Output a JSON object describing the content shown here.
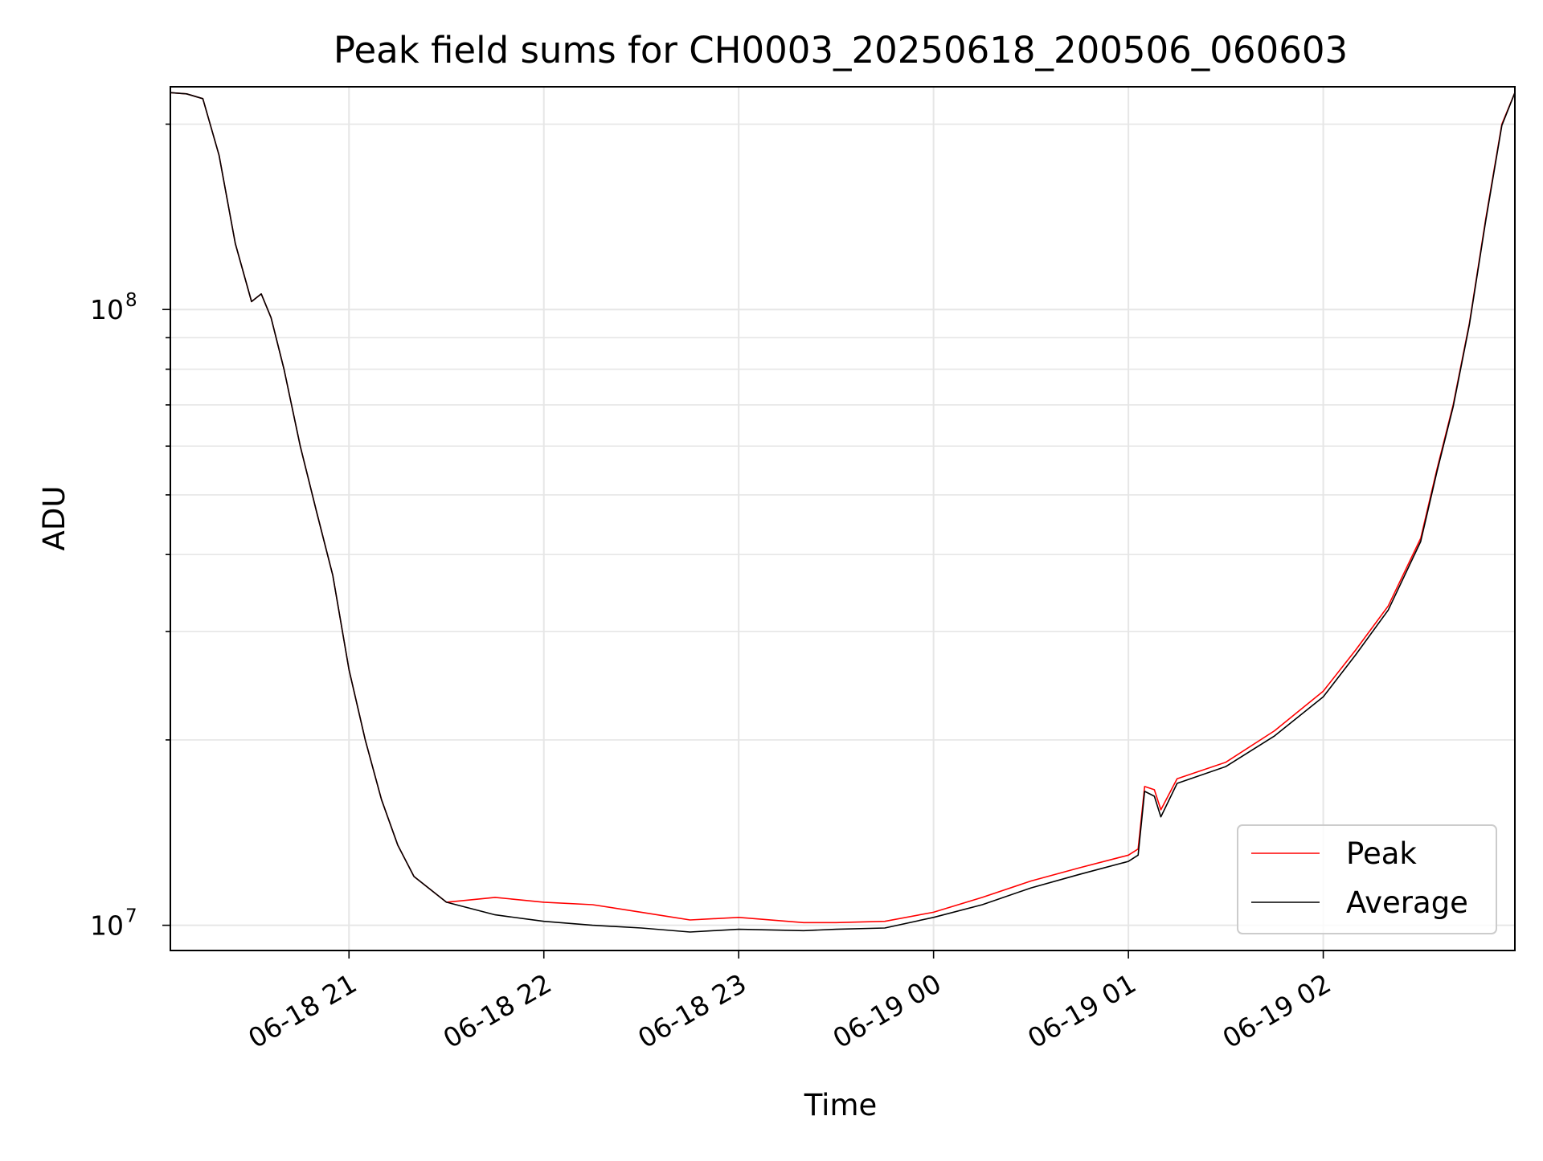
{
  "chart_data": {
    "type": "line",
    "title": "Peak field sums for CH0003_20250618_200506_060603",
    "xlabel": "Time",
    "ylabel": "ADU",
    "yscale": "log",
    "ylim": [
      9100000,
      230000000
    ],
    "xlim": [
      "2025-06-18 20:05",
      "2025-06-19 02:59"
    ],
    "x_ticks": [
      {
        "t": "2025-06-18 21:00",
        "label": "06-18 21"
      },
      {
        "t": "2025-06-18 22:00",
        "label": "06-18 22"
      },
      {
        "t": "2025-06-18 23:00",
        "label": "06-18 23"
      },
      {
        "t": "2025-06-19 00:00",
        "label": "06-19 00"
      },
      {
        "t": "2025-06-19 01:00",
        "label": "06-19 01"
      },
      {
        "t": "2025-06-19 02:00",
        "label": "06-19 02"
      }
    ],
    "y_ticks": [
      {
        "value": 10000000,
        "base": "10",
        "exp": "7"
      },
      {
        "value": 100000000,
        "base": "10",
        "exp": "8"
      }
    ],
    "grid": "on",
    "legend": {
      "position": "lower-right"
    },
    "x": [
      "2025-06-18 20:05",
      "2025-06-18 20:10",
      "2025-06-18 20:15",
      "2025-06-18 20:20",
      "2025-06-18 20:25",
      "2025-06-18 20:30",
      "2025-06-18 20:33",
      "2025-06-18 20:36",
      "2025-06-18 20:40",
      "2025-06-18 20:45",
      "2025-06-18 20:50",
      "2025-06-18 20:55",
      "2025-06-18 21:00",
      "2025-06-18 21:05",
      "2025-06-18 21:10",
      "2025-06-18 21:15",
      "2025-06-18 21:20",
      "2025-06-18 21:30",
      "2025-06-18 21:45",
      "2025-06-18 22:00",
      "2025-06-18 22:15",
      "2025-06-18 22:30",
      "2025-06-18 22:45",
      "2025-06-18 23:00",
      "2025-06-18 23:20",
      "2025-06-18 23:30",
      "2025-06-18 23:45",
      "2025-06-19 00:00",
      "2025-06-19 00:15",
      "2025-06-19 00:30",
      "2025-06-19 00:45",
      "2025-06-19 01:00",
      "2025-06-19 01:03",
      "2025-06-19 01:05",
      "2025-06-19 01:08",
      "2025-06-19 01:10",
      "2025-06-19 01:15",
      "2025-06-19 01:30",
      "2025-06-19 01:45",
      "2025-06-19 02:00",
      "2025-06-19 02:10",
      "2025-06-19 02:20",
      "2025-06-19 02:30",
      "2025-06-19 02:35",
      "2025-06-19 02:40",
      "2025-06-19 02:45",
      "2025-06-19 02:50",
      "2025-06-19 02:55",
      "2025-06-19 02:59"
    ],
    "series": [
      {
        "name": "Peak",
        "color": "#ff0000",
        "values": [
          225000000,
          224000000,
          220000000,
          178000000,
          128000000,
          103000000,
          106000000,
          97000000,
          80000000,
          60000000,
          47000000,
          37000000,
          26000000,
          20000000,
          16000000,
          13500000,
          12000000,
          10900000,
          11100000,
          10900000,
          10800000,
          10500000,
          10200000,
          10300000,
          10100000,
          10100000,
          10150000,
          10500000,
          11100000,
          11800000,
          12400000,
          13000000,
          13300000,
          16800000,
          16600000,
          15400000,
          17300000,
          18400000,
          20700000,
          24000000,
          28000000,
          33000000,
          42500000,
          55000000,
          70000000,
          95000000,
          140000000,
          200000000,
          225000000
        ]
      },
      {
        "name": "Average",
        "color": "#000000",
        "values": [
          225000000,
          224000000,
          220000000,
          178000000,
          128000000,
          103000000,
          106000000,
          97000000,
          80000000,
          60000000,
          47000000,
          37000000,
          26000000,
          20000000,
          16000000,
          13500000,
          12000000,
          10900000,
          10400000,
          10150000,
          10000000,
          9900000,
          9750000,
          9850000,
          9800000,
          9850000,
          9900000,
          10300000,
          10800000,
          11500000,
          12100000,
          12700000,
          13000000,
          16500000,
          16200000,
          15000000,
          17000000,
          18100000,
          20300000,
          23500000,
          27500000,
          32500000,
          42000000,
          54500000,
          69500000,
          94500000,
          139000000,
          199000000,
          225000000
        ]
      }
    ]
  }
}
